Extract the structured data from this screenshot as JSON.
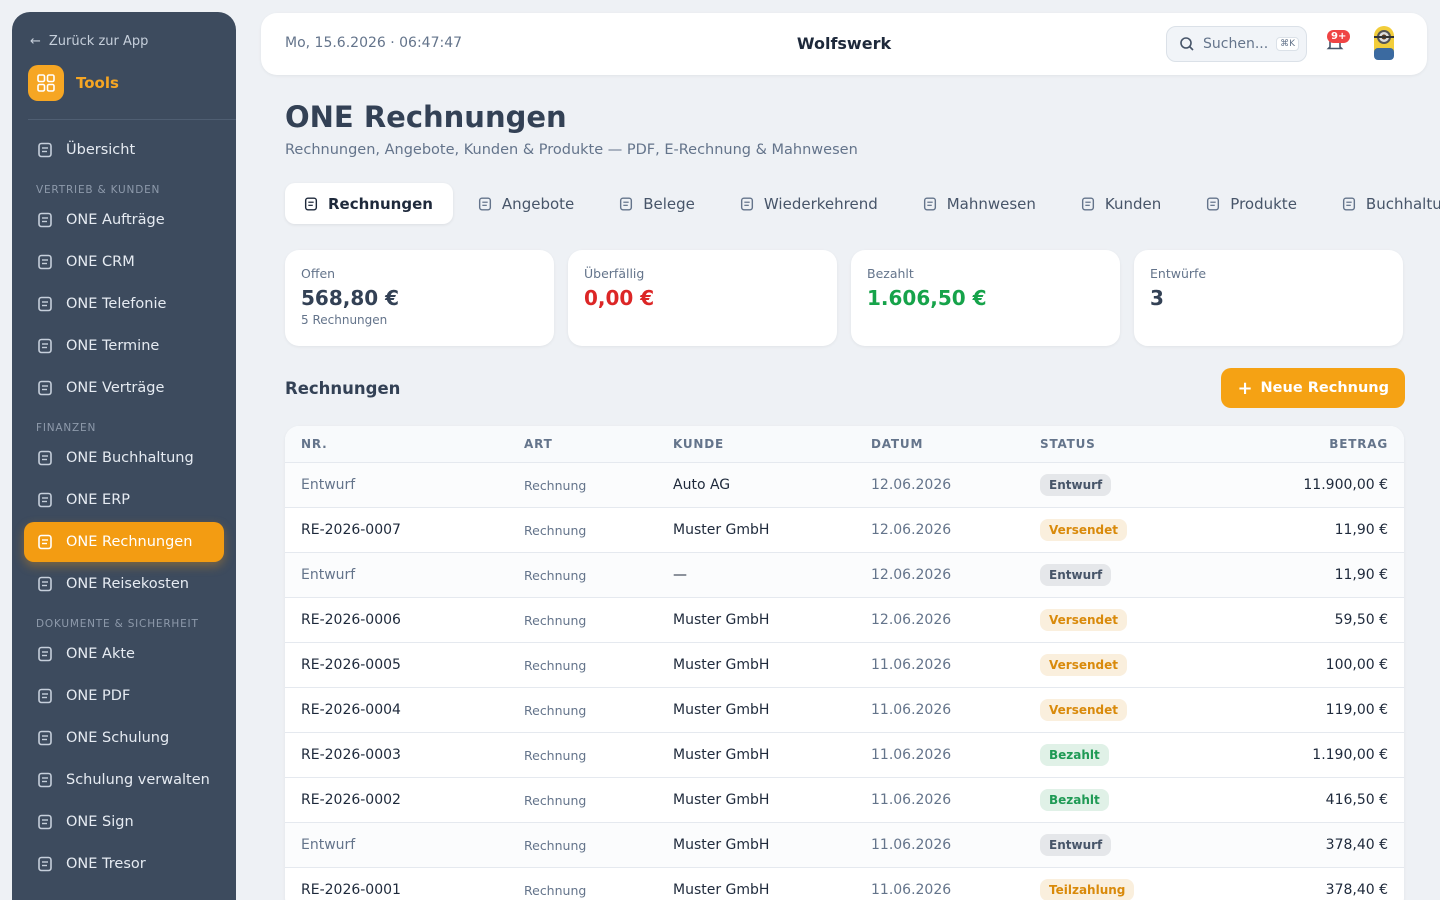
{
  "sidebar": {
    "back": "Zurück zur App",
    "brand": "Tools",
    "top": [
      {
        "label": "Übersicht"
      }
    ],
    "sections": [
      {
        "title": "VERTRIEB & KUNDEN",
        "items": [
          {
            "label": "ONE Aufträge"
          },
          {
            "label": "ONE CRM"
          },
          {
            "label": "ONE Telefonie"
          },
          {
            "label": "ONE Termine"
          },
          {
            "label": "ONE Verträge"
          }
        ]
      },
      {
        "title": "FINANZEN",
        "items": [
          {
            "label": "ONE Buchhaltung"
          },
          {
            "label": "ONE ERP"
          },
          {
            "label": "ONE Rechnungen",
            "active": true
          },
          {
            "label": "ONE Reisekosten"
          }
        ]
      },
      {
        "title": "DOKUMENTE & SICHERHEIT",
        "items": [
          {
            "label": "ONE Akte"
          },
          {
            "label": "ONE PDF"
          },
          {
            "label": "ONE Schulung"
          },
          {
            "label": "Schulung verwalten"
          },
          {
            "label": "ONE Sign"
          },
          {
            "label": "ONE Tresor"
          }
        ]
      }
    ]
  },
  "header": {
    "datetime": "Mo, 15.6.2026 · 06:47:47",
    "title": "Wolfswerk",
    "search": "Suchen...",
    "shortcut": "⌘K",
    "badge": "9+"
  },
  "page": {
    "title": "ONE Rechnungen",
    "subtitle": "Rechnungen, Angebote, Kunden & Produkte — PDF, E-Rechnung & Mahnwesen",
    "tabs": [
      "Rechnungen",
      "Angebote",
      "Belege",
      "Wiederkehrend",
      "Mahnwesen",
      "Kunden",
      "Produkte",
      "Buchhaltung"
    ],
    "active_tab": 0,
    "stats": [
      {
        "label": "Offen",
        "value": "568,80 €",
        "note": "5 Rechnungen",
        "color": "#334155"
      },
      {
        "label": "Überfällig",
        "value": "0,00 €",
        "color": "#dc2626"
      },
      {
        "label": "Bezahlt",
        "value": "1.606,50 €",
        "color": "#16a34a"
      },
      {
        "label": "Entwürfe",
        "value": "3",
        "color": "#334155"
      }
    ],
    "section_title": "Rechnungen",
    "button": "Neue Rechnung",
    "table": {
      "columns": [
        "NR.",
        "ART",
        "KUNDE",
        "DATUM",
        "STATUS",
        "BETRAG"
      ],
      "rows": [
        {
          "nr": "Entwurf",
          "art": "Rechnung",
          "kunde": "Auto AG",
          "datum": "12.06.2026",
          "status": "Entwurf",
          "betrag": "11.900,00 €",
          "status_color": "#475569"
        },
        {
          "nr": "RE-2026-0007",
          "art": "Rechnung",
          "kunde": "Muster GmbH",
          "datum": "12.06.2026",
          "status": "Versendet",
          "betrag": "11,90 €",
          "status_color": "#d98a0b"
        },
        {
          "nr": "Entwurf",
          "art": "Rechnung",
          "kunde": "—",
          "datum": "12.06.2026",
          "status": "Entwurf",
          "betrag": "11,90 €",
          "status_color": "#475569"
        },
        {
          "nr": "RE-2026-0006",
          "art": "Rechnung",
          "kunde": "Muster GmbH",
          "datum": "12.06.2026",
          "status": "Versendet",
          "betrag": "59,50 €",
          "status_color": "#d98a0b"
        },
        {
          "nr": "RE-2026-0005",
          "art": "Rechnung",
          "kunde": "Muster GmbH",
          "datum": "11.06.2026",
          "status": "Versendet",
          "betrag": "100,00 €",
          "status_color": "#d98a0b"
        },
        {
          "nr": "RE-2026-0004",
          "art": "Rechnung",
          "kunde": "Muster GmbH",
          "datum": "11.06.2026",
          "status": "Versendet",
          "betrag": "119,00 €",
          "status_color": "#d98a0b"
        },
        {
          "nr": "RE-2026-0003",
          "art": "Rechnung",
          "kunde": "Muster GmbH",
          "datum": "11.06.2026",
          "status": "Bezahlt",
          "betrag": "1.190,00 €",
          "status_color": "#1f9a55"
        },
        {
          "nr": "RE-2026-0002",
          "art": "Rechnung",
          "kunde": "Muster GmbH",
          "datum": "11.06.2026",
          "status": "Bezahlt",
          "betrag": "416,50 €",
          "status_color": "#1f9a55"
        },
        {
          "nr": "Entwurf",
          "art": "Rechnung",
          "kunde": "Muster GmbH",
          "datum": "11.06.2026",
          "status": "Entwurf",
          "betrag": "378,40 €",
          "status_color": "#475569"
        },
        {
          "nr": "RE-2026-0001",
          "art": "Rechnung",
          "kunde": "Muster GmbH",
          "datum": "11.06.2026",
          "status": "Teilzahlung",
          "betrag": "378,40 €",
          "status_color": "#d98a0b"
        }
      ]
    }
  }
}
